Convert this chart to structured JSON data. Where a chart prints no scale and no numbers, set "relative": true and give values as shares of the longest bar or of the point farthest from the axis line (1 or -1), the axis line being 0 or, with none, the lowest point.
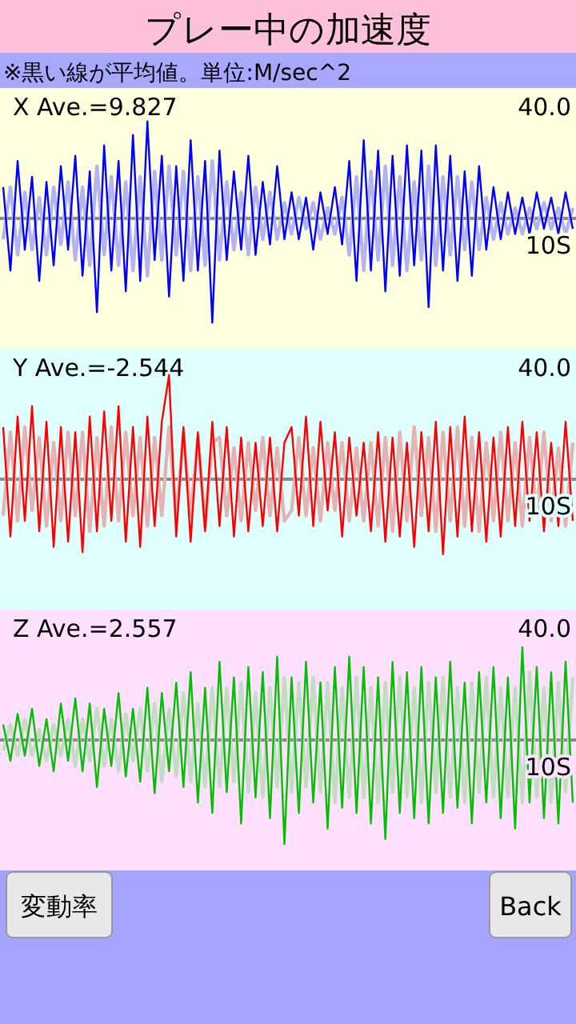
{
  "chart_data": [
    {
      "type": "line",
      "title": "プレー中の加速度",
      "subtitle": "※黒い線が平均値。単位:M/sec^2",
      "relative": true,
      "annotations": [
        "X Ave.=9.827",
        "40.0",
        "10S"
      ],
      "categories": [
        null,
        null,
        null,
        null,
        null,
        null,
        null,
        null,
        null,
        null,
        null,
        null,
        null,
        null,
        null,
        null,
        null,
        null,
        null,
        null,
        null,
        null,
        null,
        null,
        null,
        null,
        null,
        null,
        null,
        null,
        null,
        null,
        null,
        null,
        null,
        null,
        null,
        null,
        null,
        null,
        null,
        null,
        null,
        null,
        null,
        null,
        null,
        null,
        null,
        null,
        null,
        null,
        null,
        null,
        null,
        null,
        null,
        null,
        null,
        null,
        null,
        null,
        null,
        null,
        null,
        null,
        null,
        null,
        null,
        null,
        null,
        null,
        null,
        null,
        null,
        null,
        null,
        null,
        null,
        null
      ],
      "ref_lines": [
        {
          "axis": "y",
          "value": 0,
          "color": "#8c8c8c"
        }
      ],
      "series": [
        {
          "color": "#b4b4f0",
          "values": [
            -0.2,
            0.3,
            -0.35,
            0.25,
            -0.3,
            0.2,
            -0.35,
            0.3,
            -0.25,
            0.35,
            -0.4,
            0.3,
            -0.45,
            0.5,
            -0.35,
            0.4,
            -0.45,
            0.35,
            -0.5,
            0.4,
            -0.55,
            0.45,
            -0.4,
            0.5,
            -0.35,
            0.45,
            -0.5,
            0.4,
            -0.45,
            0.55,
            -0.4,
            0.35,
            -0.3,
            0.25,
            -0.35,
            0.3,
            -0.2,
            0.25,
            -0.2,
            0.15,
            -0.15,
            0.2,
            -0.1,
            0.15,
            -0.2,
            0.1,
            -0.15,
            0.2,
            -0.35,
            0.4,
            -0.5,
            0.45,
            -0.4,
            0.5,
            -0.45,
            0.4,
            -0.5,
            0.35,
            -0.4,
            0.5,
            -0.45,
            0.4,
            -0.35,
            0.4,
            -0.3,
            0.35,
            -0.3,
            0.2,
            -0.2,
            0.15,
            -0.15,
            0.1,
            -0.15,
            0.1,
            -0.1,
            0.15,
            -0.1,
            0.1,
            -0.15,
            0.1
          ]
        },
        {
          "color": "#0000ff",
          "values": [
            0.3,
            -0.5,
            0.55,
            -0.3,
            0.4,
            -0.6,
            0.35,
            -0.45,
            0.5,
            -0.3,
            0.6,
            -0.55,
            0.45,
            -0.9,
            0.7,
            -0.5,
            0.55,
            -0.7,
            0.8,
            -0.6,
            0.93,
            -0.4,
            0.6,
            -0.75,
            0.5,
            -0.6,
            0.75,
            -0.5,
            0.55,
            -1.0,
            0.65,
            -0.4,
            0.45,
            -0.3,
            0.6,
            -0.35,
            0.35,
            -0.25,
            0.5,
            -0.2,
            0.25,
            -0.2,
            0.2,
            -0.3,
            0.25,
            -0.15,
            0.3,
            -0.25,
            0.55,
            -0.6,
            0.75,
            -0.5,
            0.65,
            -0.7,
            0.6,
            -0.55,
            0.7,
            -0.45,
            0.65,
            -0.85,
            0.7,
            -0.5,
            0.6,
            -0.6,
            0.45,
            -0.55,
            0.5,
            -0.3,
            0.3,
            -0.2,
            0.25,
            -0.15,
            0.2,
            -0.15,
            0.25,
            -0.1,
            0.2,
            -0.15,
            0.25,
            -0.1
          ]
        }
      ]
    },
    {
      "type": "line",
      "relative": true,
      "annotations": [
        "Y Ave.=-2.544",
        "40.0",
        "10S"
      ],
      "categories": [
        null,
        null,
        null,
        null,
        null,
        null,
        null,
        null,
        null,
        null,
        null,
        null,
        null,
        null,
        null,
        null,
        null,
        null,
        null,
        null,
        null,
        null,
        null,
        null,
        null,
        null,
        null,
        null,
        null,
        null,
        null,
        null,
        null,
        null,
        null,
        null,
        null,
        null,
        null,
        null,
        null,
        null,
        null,
        null,
        null,
        null,
        null,
        null,
        null,
        null,
        null,
        null,
        null,
        null,
        null,
        null,
        null,
        null,
        null,
        null,
        null,
        null,
        null,
        null,
        null,
        null,
        null,
        null,
        null,
        null,
        null,
        null,
        null,
        null,
        null,
        null,
        null,
        null,
        null,
        null
      ],
      "ref_lines": [
        {
          "axis": "y",
          "value": 0,
          "color": "#8c8c8c"
        }
      ],
      "series": [
        {
          "color": "#e4b4b4",
          "values": [
            -0.35,
            0.45,
            -0.4,
            0.5,
            -0.3,
            0.4,
            -0.45,
            0.35,
            -0.4,
            0.45,
            -0.35,
            0.45,
            -0.5,
            0.4,
            -0.45,
            0.5,
            -0.4,
            0.45,
            -0.35,
            0.4,
            -0.45,
            0.4,
            -0.35,
            0.5,
            -0.4,
            0.45,
            -0.35,
            0.4,
            -0.45,
            0.35,
            0.4,
            -0.35,
            0.3,
            -0.4,
            0.35,
            -0.3,
            0.4,
            -0.35,
            0.3,
            -0.4,
            -0.3,
            0.4,
            -0.35,
            0.3,
            -0.4,
            0.35,
            -0.3,
            0.35,
            -0.4,
            0.3,
            -0.4,
            0.35,
            -0.45,
            0.4,
            -0.5,
            0.45,
            -0.4,
            0.5,
            -0.35,
            0.4,
            -0.5,
            0.45,
            -0.4,
            0.5,
            -0.45,
            0.4,
            -0.5,
            0.35,
            -0.4,
            0.45,
            -0.4,
            0.35,
            -0.45,
            0.4,
            -0.35,
            0.45,
            -0.4,
            0.3,
            -0.45,
            0.35
          ]
        },
        {
          "color": "#ff0000",
          "values": [
            0.5,
            -0.55,
            0.6,
            -0.4,
            0.7,
            -0.5,
            0.55,
            -0.65,
            0.5,
            -0.6,
            0.45,
            -0.7,
            0.6,
            -0.5,
            0.65,
            -0.4,
            0.7,
            -0.6,
            0.5,
            -0.65,
            0.6,
            -0.45,
            0.55,
            1.0,
            -0.55,
            0.5,
            -0.6,
            0.45,
            -0.5,
            0.55,
            -0.45,
            0.5,
            -0.55,
            0.4,
            -0.5,
            0.35,
            -0.45,
            0.4,
            -0.5,
            0.35,
            0.5,
            -0.35,
            0.6,
            -0.45,
            0.55,
            -0.3,
            0.45,
            -0.55,
            0.4,
            -0.35,
            0.35,
            -0.5,
            0.45,
            -0.6,
            0.4,
            -0.55,
            0.35,
            -0.65,
            0.45,
            -0.5,
            0.55,
            -0.72,
            0.5,
            -0.55,
            0.6,
            -0.5,
            0.45,
            -0.6,
            0.4,
            -0.55,
            0.5,
            -0.45,
            0.55,
            -0.4,
            0.45,
            -0.5,
            0.35,
            -0.45,
            0.55,
            -0.4
          ]
        }
      ]
    },
    {
      "type": "line",
      "relative": true,
      "annotations": [
        "Z Ave.=2.557",
        "40.0",
        "10S"
      ],
      "categories": [
        null,
        null,
        null,
        null,
        null,
        null,
        null,
        null,
        null,
        null,
        null,
        null,
        null,
        null,
        null,
        null,
        null,
        null,
        null,
        null,
        null,
        null,
        null,
        null,
        null,
        null,
        null,
        null,
        null,
        null,
        null,
        null,
        null,
        null,
        null,
        null,
        null,
        null,
        null,
        null,
        null,
        null,
        null,
        null,
        null,
        null,
        null,
        null,
        null,
        null,
        null,
        null,
        null,
        null,
        null,
        null,
        null,
        null,
        null,
        null,
        null,
        null,
        null,
        null,
        null,
        null,
        null,
        null,
        null,
        null,
        null,
        null,
        null,
        null,
        null,
        null,
        null,
        null,
        null,
        null
      ],
      "ref_lines": [
        {
          "axis": "y",
          "value": 0,
          "color": "#8c8c8c"
        }
      ],
      "series": [
        {
          "color": "#c4dcc4",
          "values": [
            -0.1,
            0.15,
            -0.15,
            0.2,
            -0.15,
            0.1,
            -0.2,
            0.15,
            -0.15,
            0.2,
            -0.25,
            0.2,
            -0.2,
            0.3,
            -0.25,
            0.2,
            -0.3,
            0.25,
            -0.2,
            0.3,
            -0.3,
            0.35,
            -0.4,
            0.3,
            -0.35,
            0.45,
            -0.4,
            0.35,
            -0.45,
            0.5,
            -0.45,
            0.5,
            -0.4,
            0.55,
            -0.5,
            0.45,
            -0.55,
            0.5,
            -0.45,
            0.6,
            -0.5,
            0.55,
            -0.45,
            0.6,
            -0.5,
            0.55,
            -0.6,
            0.5,
            -0.55,
            0.6,
            -0.55,
            0.5,
            -0.6,
            0.55,
            -0.5,
            0.6,
            -0.55,
            0.5,
            -0.6,
            0.55,
            -0.5,
            0.6,
            -0.55,
            0.5,
            -0.6,
            0.55,
            -0.5,
            0.6,
            -0.55,
            0.5,
            -0.55,
            0.5,
            -0.6,
            0.65,
            -0.55,
            0.5,
            -0.6,
            0.55,
            -0.5,
            0.6
          ]
        },
        {
          "color": "#00c000",
          "values": [
            0.15,
            -0.2,
            0.25,
            -0.15,
            0.3,
            -0.25,
            0.2,
            -0.3,
            0.35,
            -0.2,
            0.4,
            -0.3,
            0.35,
            -0.45,
            0.3,
            -0.25,
            0.45,
            -0.35,
            0.3,
            -0.4,
            0.5,
            -0.51,
            0.45,
            -0.3,
            0.55,
            -0.45,
            0.65,
            -0.6,
            0.5,
            -0.7,
            0.75,
            -0.5,
            0.6,
            -0.8,
            0.7,
            -0.55,
            0.65,
            -0.75,
            0.8,
            -1.0,
            0.6,
            -0.7,
            0.75,
            -0.6,
            0.55,
            -0.85,
            0.7,
            -0.65,
            0.8,
            -0.7,
            0.7,
            -0.8,
            0.6,
            -0.95,
            0.75,
            -0.7,
            0.65,
            -0.75,
            0.7,
            -0.8,
            0.6,
            -0.7,
            0.75,
            -0.65,
            0.55,
            -0.8,
            0.65,
            -0.6,
            0.7,
            -0.75,
            0.6,
            -0.85,
            0.89,
            -0.6,
            0.7,
            -0.75,
            0.65,
            -0.8,
            0.75,
            -0.6
          ]
        }
      ]
    },
    {
      "type": "other",
      "annotations": [
        "変動率",
        "Back"
      ]
    }
  ]
}
